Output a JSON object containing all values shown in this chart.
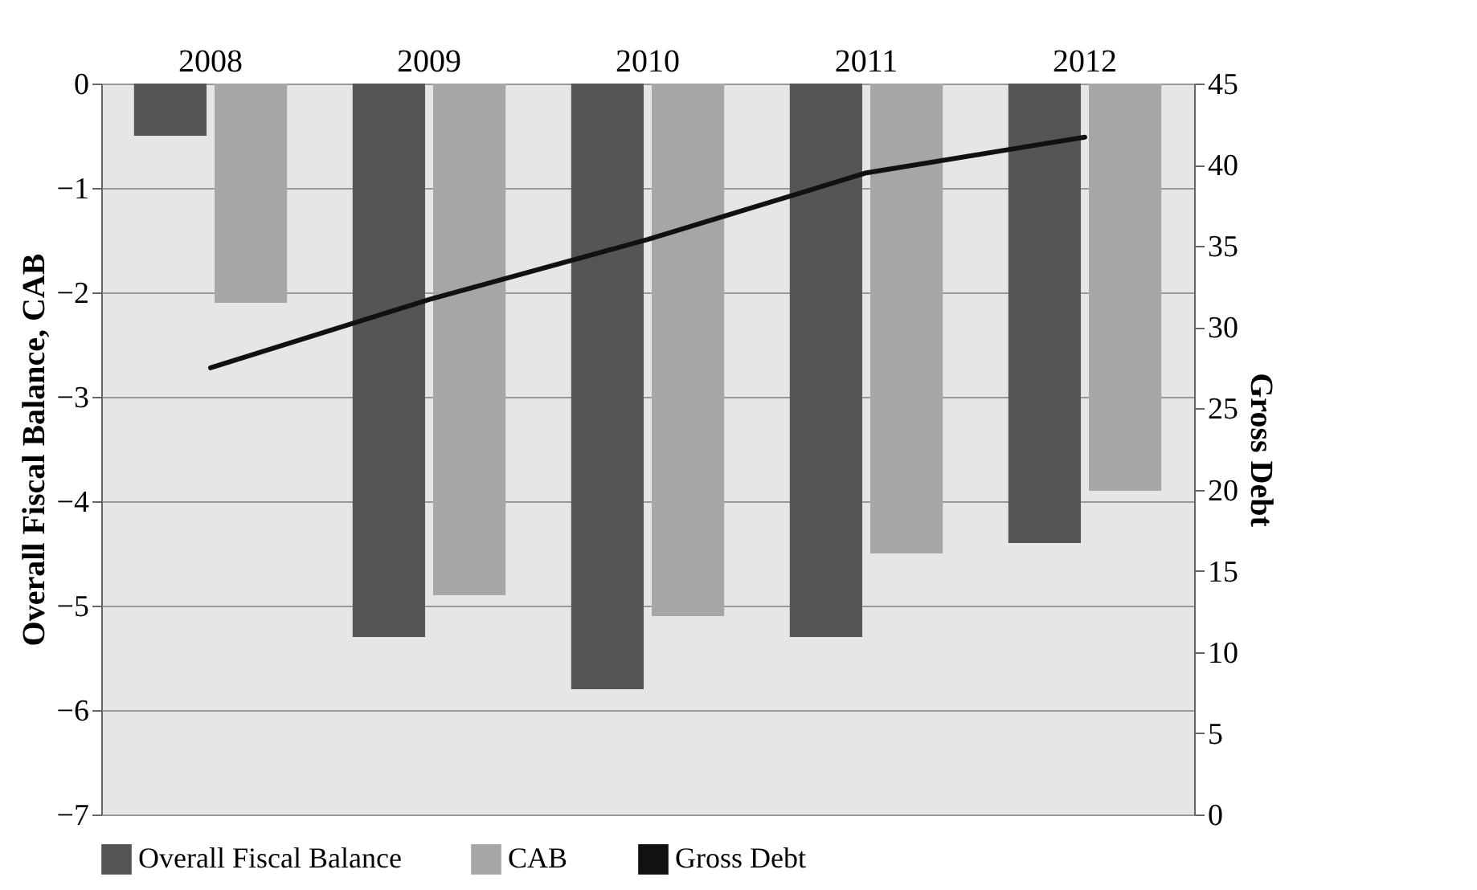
{
  "chart_data": {
    "type": "bar",
    "categories": [
      "2008",
      "2009",
      "2010",
      "2011",
      "2012"
    ],
    "ylabel": "Overall Fiscal Balance, CAB",
    "y2label": "Gross Debt",
    "ylim": [
      -7,
      0
    ],
    "yticks": [
      -7,
      -6,
      -5,
      -4,
      -3,
      -2,
      -1,
      0
    ],
    "y2lim": [
      0,
      45
    ],
    "y2ticks": [
      0,
      5,
      10,
      15,
      20,
      25,
      30,
      35,
      40,
      45
    ],
    "grid": "y",
    "legend": "bottom",
    "series": [
      {
        "name": "Overall Fiscal Balance",
        "color": "#555555",
        "values": [
          -0.5,
          -5.3,
          -5.8,
          -5.3,
          -4.4
        ]
      },
      {
        "name": "CAB",
        "color": "#a6a6a6",
        "values": [
          -2.1,
          -4.9,
          -5.1,
          -4.5,
          -3.9
        ]
      },
      {
        "name": "Gross Debt",
        "type": "line",
        "axis": "y2",
        "color": "#111111",
        "values": [
          27.5,
          31.7,
          35.4,
          39.5,
          41.7
        ]
      }
    ]
  }
}
